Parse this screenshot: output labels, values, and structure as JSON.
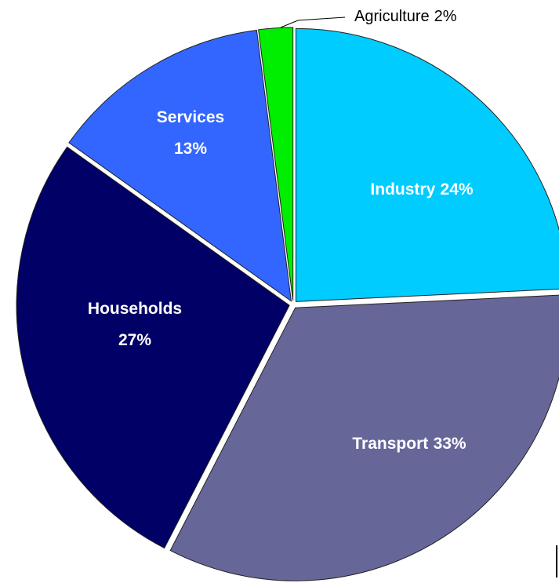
{
  "chart_data": {
    "type": "pie",
    "categories": [
      "Industry",
      "Transport",
      "Households",
      "Services",
      "Agriculture"
    ],
    "values": [
      24,
      33,
      27,
      13,
      2
    ],
    "value_labels": [
      "24%",
      "33%",
      "27%",
      "13%",
      "2%"
    ],
    "colors": [
      "#00ccff",
      "#666699",
      "#000066",
      "#3366ff",
      "#00ee00"
    ]
  }
}
